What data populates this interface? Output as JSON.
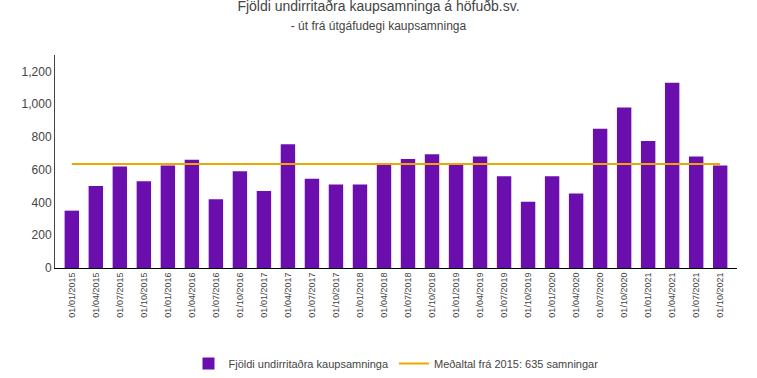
{
  "chart_data": {
    "type": "bar",
    "title": "Fjöldi undirritaðra kaupsamninga á höfuðb.sv.",
    "subtitle": "- út frá útgáfudegi kaupsamninga",
    "categories": [
      "01/01/2015",
      "01/04/2015",
      "01/07/2015",
      "01/10/2015",
      "01/01/2016",
      "01/04/2016",
      "01/07/2016",
      "01/10/2016",
      "01/01/2017",
      "01/04/2017",
      "01/07/2017",
      "01/10/2017",
      "01/01/2018",
      "01/04/2018",
      "01/07/2018",
      "01/10/2018",
      "01/01/2019",
      "01/04/2019",
      "01/07/2019",
      "01/10/2019",
      "01/01/2020",
      "01/04/2020",
      "01/07/2020",
      "01/10/2020",
      "01/01/2021",
      "01/04/2021",
      "01/07/2021",
      "01/10/2021"
    ],
    "series": [
      {
        "name": "Fjöldi undirritaðra kaupsamninga",
        "type": "bar",
        "color": "#6A0FAD",
        "values": [
          350,
          500,
          620,
          530,
          625,
          660,
          420,
          590,
          470,
          755,
          545,
          510,
          510,
          640,
          665,
          695,
          640,
          680,
          560,
          405,
          560,
          455,
          850,
          980,
          775,
          1130,
          680,
          625
        ]
      },
      {
        "name": "Meðaltal frá 2015: 635 samningar",
        "type": "line",
        "color": "#F0A500",
        "values": [
          635,
          635,
          635,
          635,
          635,
          635,
          635,
          635,
          635,
          635,
          635,
          635,
          635,
          635,
          635,
          635,
          635,
          635,
          635,
          635,
          635,
          635,
          635,
          635,
          635,
          635,
          635,
          635
        ]
      }
    ],
    "ylim": [
      0,
      1300
    ],
    "yticks": [
      0,
      200,
      400,
      600,
      800,
      {
        "value": 1000,
        "label": "1,000"
      },
      {
        "value": 1200,
        "label": "1,200"
      }
    ],
    "grid": false,
    "legend": "bottom"
  }
}
